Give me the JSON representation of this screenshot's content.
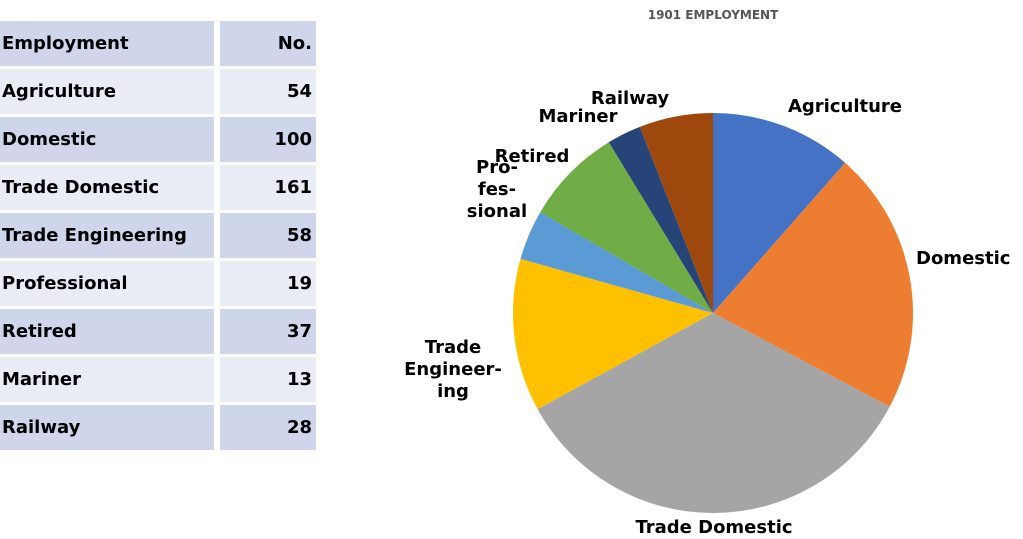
{
  "table": {
    "header": {
      "employment": "Employment",
      "count": "No."
    },
    "rows": [
      {
        "name": "Agriculture",
        "value": "54"
      },
      {
        "name": "Domestic",
        "value": "100"
      },
      {
        "name": "Trade Domestic",
        "value": "161"
      },
      {
        "name": "Trade Engineering",
        "value": "58"
      },
      {
        "name": "Professional",
        "value": "19"
      },
      {
        "name": "Retired",
        "value": "37"
      },
      {
        "name": "Mariner",
        "value": "13"
      },
      {
        "name": "Railway",
        "value": "28"
      }
    ]
  },
  "chart_data": {
    "type": "pie",
    "title": "1901 EMPLOYMENT",
    "categories": [
      "Agriculture",
      "Domestic",
      "Trade Domestic",
      "Trade Engineering",
      "Professional",
      "Retired",
      "Mariner",
      "Railway"
    ],
    "labels": [
      [
        "Agriculture"
      ],
      [
        "Domestic"
      ],
      [
        "Trade Domestic"
      ],
      [
        "Trade",
        "Engineer-",
        "ing"
      ],
      [
        "Pro-",
        "fes-",
        "sional"
      ],
      [
        "Retired"
      ],
      [
        "Mariner"
      ],
      [
        "Railway"
      ]
    ],
    "values": [
      54,
      100,
      161,
      58,
      19,
      37,
      13,
      28
    ],
    "colors": [
      "#4472c4",
      "#ed7d31",
      "#a5a5a5",
      "#ffc000",
      "#5b9bd5",
      "#70ad47",
      "#264478",
      "#9e480e"
    ],
    "start_angle": "12 o'clock",
    "direction": "clockwise",
    "legend": "none"
  }
}
